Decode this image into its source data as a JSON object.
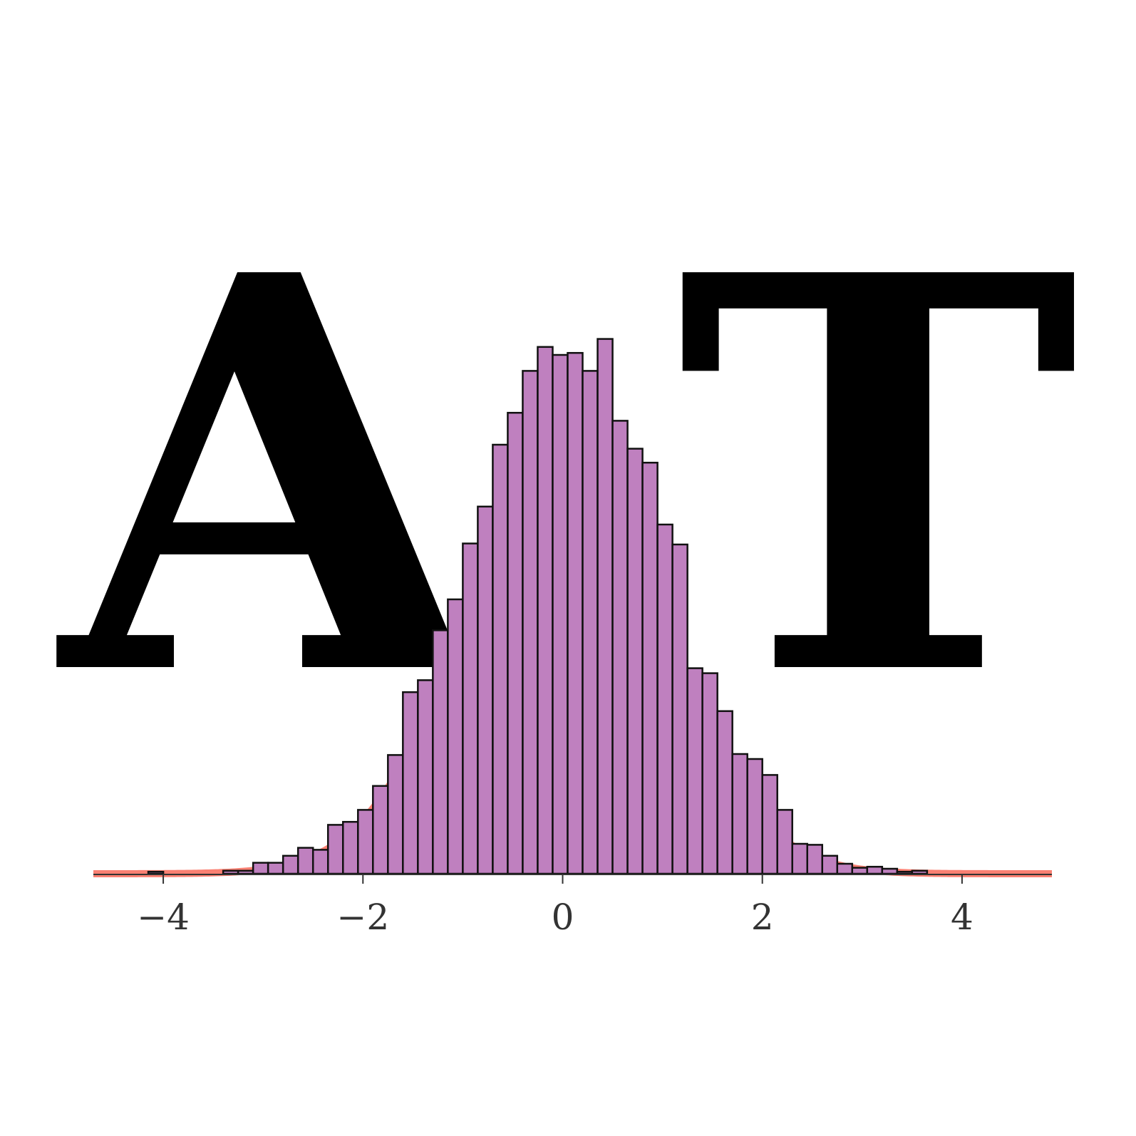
{
  "colors": {
    "bar_fill": "#bf80bf",
    "bar_edge": "#111111",
    "curve": "#fa8072",
    "axis": "#333333",
    "logo": "#000000"
  },
  "logo": {
    "left_letter": "A",
    "right_letter": "T"
  },
  "chart_data": {
    "type": "bar",
    "subtype": "histogram_with_density_curve",
    "title": "",
    "xlabel": "",
    "ylabel": "",
    "xlim": [
      -4.7,
      4.9
    ],
    "ylim": [
      0,
      0.5
    ],
    "y_axis_visible": false,
    "grid": false,
    "x_ticks": [
      -4,
      -2,
      0,
      2,
      4
    ],
    "x_tick_labels": [
      "−4",
      "−2",
      "0",
      "2",
      "4"
    ],
    "bins": {
      "start": -4.15,
      "width": 0.15,
      "densities": [
        0.002,
        0.0,
        0.0,
        0.0,
        0.0,
        0.003,
        0.003,
        0.011,
        0.011,
        0.018,
        0.026,
        0.024,
        0.049,
        0.052,
        0.064,
        0.088,
        0.119,
        0.182,
        0.194,
        0.244,
        0.275,
        0.331,
        0.368,
        0.43,
        0.462,
        0.504,
        0.528,
        0.52,
        0.522,
        0.504,
        0.536,
        0.454,
        0.426,
        0.412,
        0.35,
        0.33,
        0.206,
        0.201,
        0.163,
        0.12,
        0.115,
        0.099,
        0.064,
        0.03,
        0.029,
        0.018,
        0.01,
        0.006,
        0.007,
        0.005,
        0.002,
        0.003
      ]
    },
    "series": [
      {
        "kind": "density_curve",
        "distribution": "normal",
        "mean": 0,
        "sd": 1
      }
    ]
  }
}
